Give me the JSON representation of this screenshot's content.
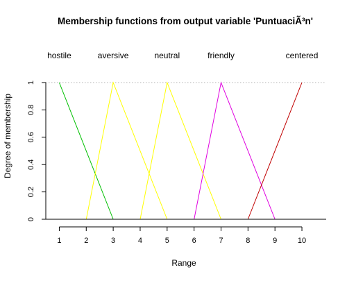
{
  "chart_data": {
    "type": "line",
    "title": "Membership functions from output variable 'PuntuaciÃ³n'",
    "xlabel": "Range",
    "ylabel": "Degree of membership",
    "xlim": [
      0.5,
      10.9
    ],
    "ylim": [
      0,
      1
    ],
    "x_ticks": [
      1,
      2,
      3,
      4,
      5,
      6,
      7,
      8,
      9,
      10
    ],
    "y_ticks": [
      0,
      0.2,
      0.4,
      0.6,
      0.8,
      1
    ],
    "reference_line_y": 1,
    "grid": false,
    "series": [
      {
        "name": "hostile",
        "color": "#00c000",
        "points": [
          [
            1,
            1
          ],
          [
            3,
            0
          ]
        ]
      },
      {
        "name": "aversive",
        "color": "#ffff00",
        "points": [
          [
            2,
            0
          ],
          [
            3,
            1
          ],
          [
            5,
            0
          ]
        ]
      },
      {
        "name": "neutral",
        "color": "#ffff00",
        "points": [
          [
            4,
            0
          ],
          [
            5,
            1
          ],
          [
            7,
            0
          ]
        ]
      },
      {
        "name": "friendly",
        "color": "#e000e0",
        "points": [
          [
            6,
            0
          ],
          [
            7,
            1
          ],
          [
            9,
            0
          ]
        ]
      },
      {
        "name": "centered",
        "color": "#c00000",
        "points": [
          [
            8,
            0
          ],
          [
            10,
            1
          ]
        ]
      }
    ]
  }
}
